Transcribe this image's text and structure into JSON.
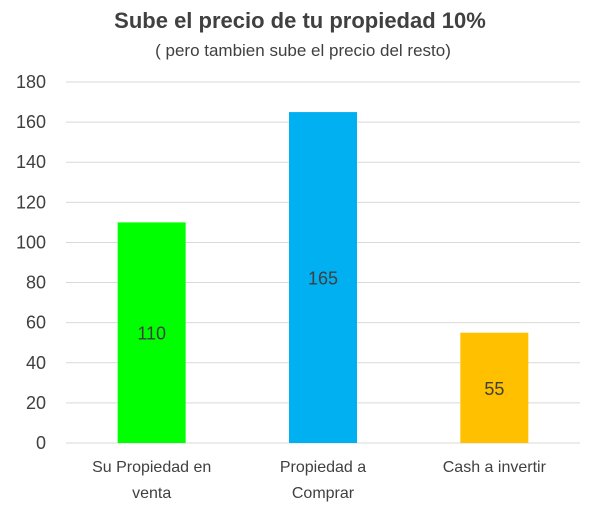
{
  "chart_data": {
    "type": "bar",
    "title": "Sube el precio de tu propiedad 10%",
    "subtitle": "( pero tambien sube el precio del resto)",
    "categories": [
      [
        "Su Propiedad en",
        "venta"
      ],
      [
        "Propiedad a",
        "Comprar"
      ],
      [
        "Cash a invertir"
      ]
    ],
    "values": [
      110,
      165,
      55
    ],
    "colors": [
      "#00ff00",
      "#00b0f0",
      "#ffc000"
    ],
    "ylim": [
      0,
      180
    ],
    "yticks": [
      0,
      20,
      40,
      60,
      80,
      100,
      120,
      140,
      160,
      180
    ],
    "grid": true,
    "legend": "none"
  }
}
